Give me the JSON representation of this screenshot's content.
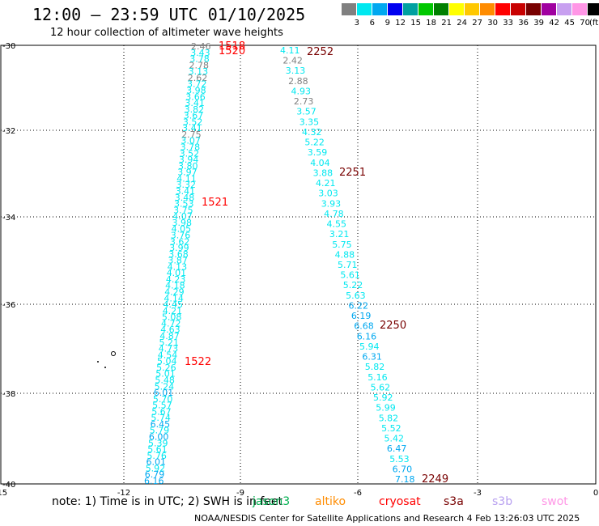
{
  "header": {
    "title": "12:00 – 23:59 UTC 01/10/2025",
    "subtitle": "12 hour collection of altimeter wave heights"
  },
  "legend": {
    "unit": "(ft)",
    "colors": [
      "#808080",
      "#00e8f0",
      "#00a8f0",
      "#0000f0",
      "#00a0a0",
      "#00c800",
      "#008000",
      "#ffff00",
      "#ffc800",
      "#ff8c00",
      "#ff0000",
      "#c80000",
      "#780000",
      "#a000a0",
      "#c8a0f0",
      "#ff96e6",
      "#000000"
    ],
    "labels": [
      "3",
      "6",
      "9",
      "12",
      "15",
      "18",
      "21",
      "24",
      "27",
      "30",
      "33",
      "36",
      "39",
      "42",
      "45",
      "70"
    ]
  },
  "axes": {
    "y_ticks": [
      "-30",
      "-32",
      "-34",
      "-36",
      "-38",
      "-40"
    ],
    "x_ticks": [
      "-15",
      "-12",
      "-9",
      "-6",
      "-3",
      "0"
    ]
  },
  "passes": [
    {
      "name": "left-pass",
      "times": [
        "1518",
        "1520",
        "1521",
        "1522"
      ],
      "values": [
        "2.46",
        "3.43",
        "3.78",
        "2.78",
        "3.13",
        "2.62",
        "3.72",
        "3.98",
        "3.66",
        "3.41",
        "3.82",
        "3.67",
        "3.52",
        "3.41",
        "2.75",
        "3.07",
        "3.78",
        "3.52",
        "3.94",
        "3.80",
        "3.97",
        "4.11",
        "3.32",
        "3.41",
        "3.48",
        "3.53",
        "3.75",
        "4.07",
        "3.98",
        "4.05",
        "3.76",
        "3.62",
        "3.99",
        "3.68",
        "3.87",
        "4.13",
        "4.01",
        "4.23",
        "4.18",
        "4.29",
        "4.14",
        "4.45",
        "4.21",
        "5.08",
        "4.72",
        "4.63",
        "4.87",
        "5.21",
        "4.73",
        "4.54",
        "5.04",
        "5.26",
        "5.01",
        "5.48",
        "5.24",
        "6.01",
        "5.70",
        "5.57",
        "5.67",
        "5.74",
        "6.45",
        "5.79",
        "6.00",
        "5.39",
        "5.61",
        "5.76",
        "6.01",
        "5.92",
        "6.79",
        "6.16"
      ]
    },
    {
      "name": "right-pass",
      "times": [
        "2252",
        "2251",
        "2250",
        "2249"
      ],
      "values": [
        "4.11",
        "2.42",
        "3.13",
        "2.88",
        "4.93",
        "2.73",
        "3.57",
        "3.35",
        "4.32",
        "5.22",
        "3.59",
        "4.04",
        "3.88",
        "4.21",
        "3.03",
        "3.93",
        "4.78",
        "4.55",
        "3.21",
        "5.75",
        "4.88",
        "5.71",
        "5.61",
        "5.22",
        "5.63",
        "6.22",
        "6.19",
        "6.68",
        "6.16",
        "5.94",
        "6.31",
        "5.82",
        "5.16",
        "5.62",
        "5.92",
        "5.99",
        "5.82",
        "5.52",
        "5.42",
        "6.47",
        "5.53",
        "6.70",
        "7.18"
      ]
    }
  ],
  "note": "note:  1) Time is in UTC; 2) SWH is in feet",
  "satellites": [
    "jason3",
    "altiko",
    "cryosat",
    "s3a",
    "s3b",
    "swot"
  ],
  "footer": "NOAA/NESDIS Center for Satellite Applications and Research     4 Feb 13:26:03 UTC 2025"
}
